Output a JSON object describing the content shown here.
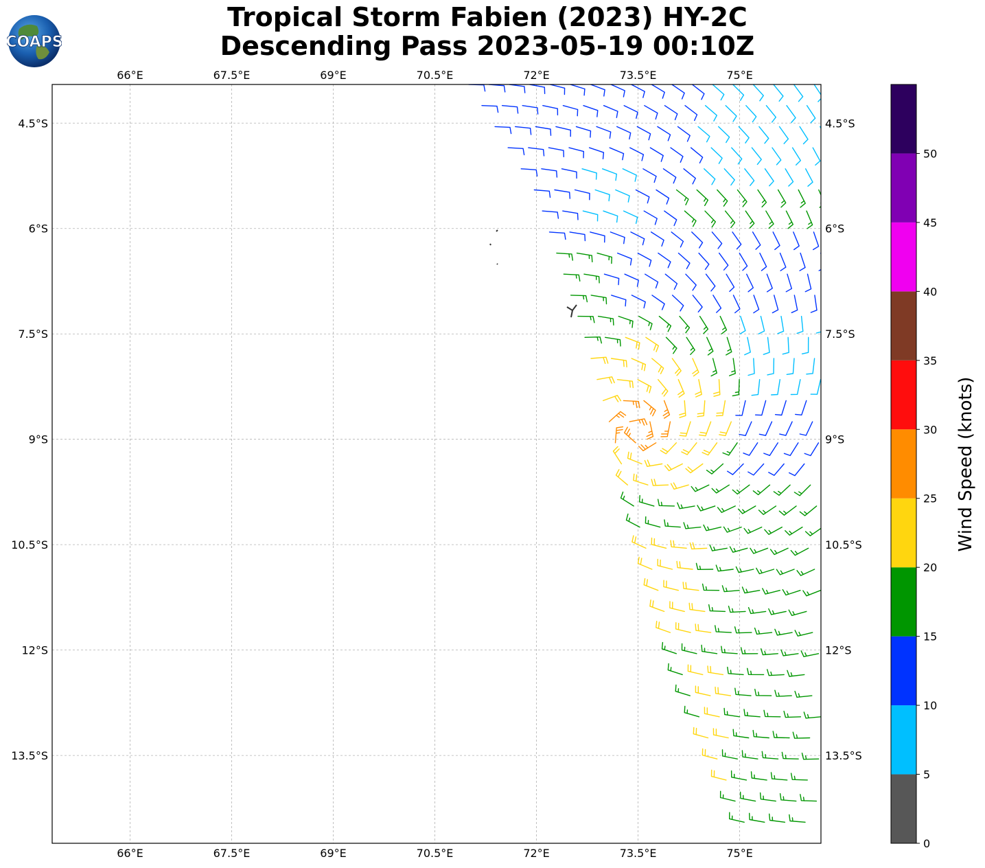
{
  "title": {
    "line1": "Tropical Storm Fabien (2023) HY-2C",
    "line2": "Descending Pass 2023-05-19 00:10Z"
  },
  "logo": {
    "text": "COAPS",
    "icon": "globe-logo-icon"
  },
  "map": {
    "lon_range": [
      64.85,
      76.2
    ],
    "lat_range": [
      -3.95,
      -14.75
    ],
    "lon_ticks": [
      "66°E",
      "67.5°E",
      "69°E",
      "70.5°E",
      "72°E",
      "73.5°E",
      "75°E"
    ],
    "lon_tick_values": [
      66,
      67.5,
      69,
      70.5,
      72,
      73.5,
      75
    ],
    "lat_ticks": [
      "4.5°S",
      "6°S",
      "7.5°S",
      "9°S",
      "10.5°S",
      "12°S",
      "13.5°S"
    ],
    "lat_tick_values": [
      -4.5,
      -6,
      -7.5,
      -9,
      -10.5,
      -12,
      -13.5
    ],
    "grid": true,
    "land": "small islands near 71.3°E 6.3°S–6.7°S"
  },
  "colorbar": {
    "label": "Wind Speed (knots)",
    "ticks": [
      "0",
      "5",
      "10",
      "15",
      "20",
      "25",
      "30",
      "35",
      "40",
      "45",
      "50"
    ],
    "bins": [
      {
        "min": 0,
        "max": 5,
        "color": "#575757"
      },
      {
        "min": 5,
        "max": 10,
        "color": "#00bfff"
      },
      {
        "min": 10,
        "max": 15,
        "color": "#0033ff"
      },
      {
        "min": 15,
        "max": 20,
        "color": "#009600"
      },
      {
        "min": 20,
        "max": 25,
        "color": "#ffd60f"
      },
      {
        "min": 25,
        "max": 30,
        "color": "#ff8c00"
      },
      {
        "min": 30,
        "max": 35,
        "color": "#ff0d0d"
      },
      {
        "min": 35,
        "max": 40,
        "color": "#7f3a25"
      },
      {
        "min": 40,
        "max": 45,
        "color": "#f000f0"
      },
      {
        "min": 45,
        "max": 50,
        "color": "#8000b3"
      },
      {
        "min": 50,
        "max": 55,
        "color": "#2d005e"
      }
    ]
  }
}
